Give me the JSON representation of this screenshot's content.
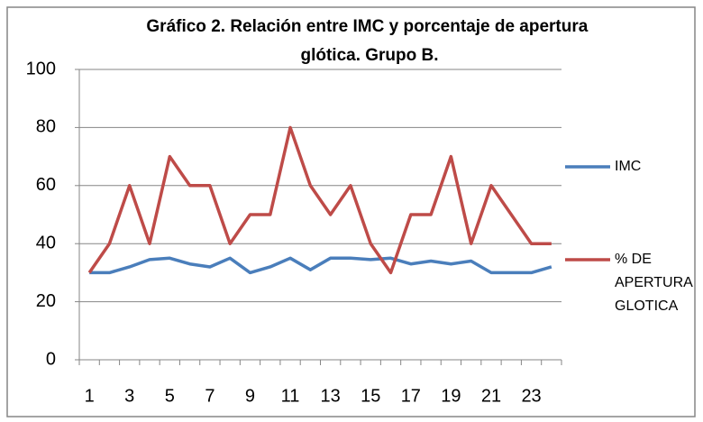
{
  "chart_data": {
    "type": "line",
    "title": "Gráfico 2. Relación entre IMC y porcentaje de apertura glótica. Grupo B.",
    "categories": [
      "1",
      null,
      "3",
      null,
      "5",
      null,
      "7",
      null,
      "9",
      null,
      "11",
      null,
      "13",
      null,
      "15",
      null,
      "17",
      null,
      "19",
      null,
      "21",
      null,
      "23",
      null
    ],
    "series": [
      {
        "name": "IMC",
        "color": "#4a7ebb",
        "values": [
          30,
          30,
          32,
          34.5,
          35,
          33,
          32,
          35,
          30,
          32,
          35,
          31,
          35,
          35,
          34.5,
          35,
          33,
          34,
          33,
          34,
          30,
          30,
          30,
          32
        ]
      },
      {
        "name": "% DE APERTURA GLOTICA",
        "color": "#be4b48",
        "values": [
          30,
          40,
          60,
          40,
          70,
          60,
          60,
          40,
          50,
          50,
          80,
          60,
          50,
          60,
          40,
          30,
          50,
          50,
          70,
          40,
          60,
          50,
          40,
          40
        ]
      }
    ],
    "ylim": [
      0,
      100
    ],
    "yticks": [
      0,
      20,
      40,
      60,
      80,
      100
    ],
    "grid": true,
    "legend": "right"
  }
}
